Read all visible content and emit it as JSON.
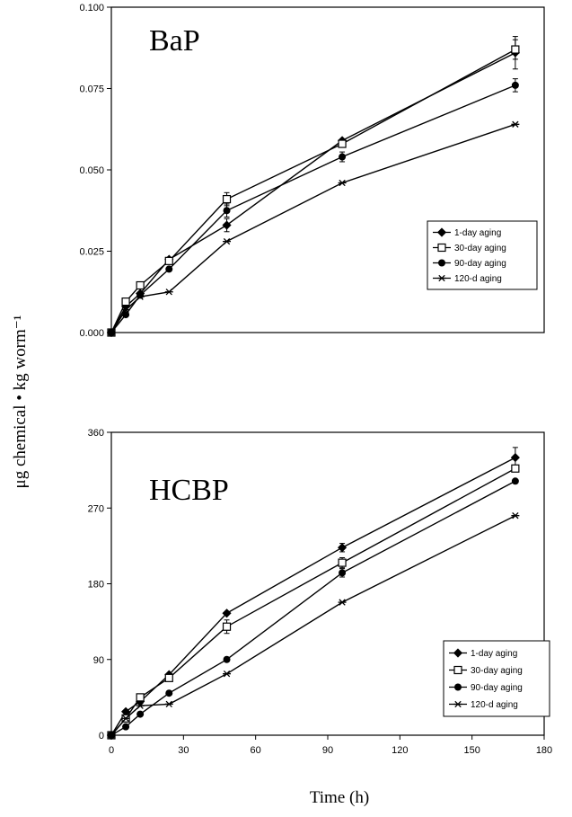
{
  "figure": {
    "ylabel": "μg chemical • kg worm⁻¹",
    "xlabel": "Time (h)"
  },
  "chart_data": [
    {
      "type": "line",
      "title": "BaP",
      "xlabel": "Time (h)",
      "ylabel": "μg chemical • kg worm⁻¹",
      "xlim": [
        0,
        180
      ],
      "ylim": [
        0,
        0.1
      ],
      "xticks": [],
      "yticks": [
        "0.000",
        "0.025",
        "0.050",
        "0.075",
        "0.100"
      ],
      "ytick_values": [
        0,
        0.025,
        0.05,
        0.075,
        0.1
      ],
      "grid": false,
      "legend_position": "right",
      "series": [
        {
          "name": "1-day aging",
          "marker": "diamond",
          "x": [
            0,
            6,
            12,
            24,
            48,
            96,
            168
          ],
          "y": [
            0.0,
            0.008,
            0.012,
            0.0225,
            0.033,
            0.059,
            0.086
          ],
          "err": [
            0,
            0,
            0,
            0,
            0.002,
            0,
            0.005
          ]
        },
        {
          "name": "30-day aging",
          "marker": "open-square",
          "x": [
            0,
            6,
            12,
            24,
            48,
            96,
            168
          ],
          "y": [
            0.0,
            0.0095,
            0.0145,
            0.022,
            0.041,
            0.058,
            0.087
          ],
          "err": [
            0,
            0,
            0,
            0,
            0.002,
            0,
            0.003
          ]
        },
        {
          "name": "90-day aging",
          "marker": "filled-circle",
          "x": [
            0,
            6,
            12,
            24,
            48,
            96,
            168
          ],
          "y": [
            0.0,
            0.0055,
            0.0115,
            0.0195,
            0.0375,
            0.054,
            0.076
          ],
          "err": [
            0,
            0,
            0,
            0,
            0.002,
            0.0015,
            0.002
          ]
        },
        {
          "name": "120-d aging",
          "marker": "asterisk",
          "x": [
            0,
            6,
            12,
            24,
            48,
            96,
            168
          ],
          "y": [
            0.0,
            0.007,
            0.011,
            0.0125,
            0.028,
            0.046,
            0.064
          ],
          "err": [
            0,
            0,
            0,
            0,
            0,
            0,
            0
          ]
        }
      ]
    },
    {
      "type": "line",
      "title": "HCBP",
      "xlabel": "Time (h)",
      "ylabel": "μg chemical • kg worm⁻¹",
      "xlim": [
        0,
        180
      ],
      "ylim": [
        0,
        360
      ],
      "xticks": [
        "0",
        "30",
        "60",
        "90",
        "120",
        "150",
        "180"
      ],
      "xtick_values": [
        0,
        30,
        60,
        90,
        120,
        150,
        180
      ],
      "yticks": [
        "0",
        "90",
        "180",
        "270",
        "360"
      ],
      "ytick_values": [
        0,
        90,
        180,
        270,
        360
      ],
      "grid": false,
      "legend_position": "bottom-right",
      "series": [
        {
          "name": "1-day aging",
          "marker": "diamond",
          "x": [
            0,
            6,
            12,
            24,
            48,
            96,
            168
          ],
          "y": [
            0,
            28,
            40,
            72,
            145,
            223,
            330
          ],
          "err": [
            0,
            0,
            0,
            0,
            0,
            5,
            12
          ]
        },
        {
          "name": "30-day aging",
          "marker": "open-square",
          "x": [
            0,
            6,
            12,
            24,
            48,
            96,
            168
          ],
          "y": [
            0,
            20,
            45,
            68,
            129,
            205,
            317
          ],
          "err": [
            0,
            0,
            0,
            0,
            8,
            6,
            0
          ]
        },
        {
          "name": "90-day aging",
          "marker": "filled-circle",
          "x": [
            0,
            6,
            12,
            24,
            48,
            96,
            168
          ],
          "y": [
            0,
            10,
            25,
            50,
            90,
            193,
            302
          ],
          "err": [
            0,
            0,
            0,
            0,
            0,
            5,
            0
          ]
        },
        {
          "name": "120-d aging",
          "marker": "asterisk",
          "x": [
            0,
            6,
            12,
            24,
            48,
            96,
            168
          ],
          "y": [
            0,
            20,
            35,
            37,
            73,
            158,
            261
          ],
          "err": [
            0,
            0,
            0,
            0,
            0,
            0,
            0
          ]
        }
      ]
    }
  ]
}
